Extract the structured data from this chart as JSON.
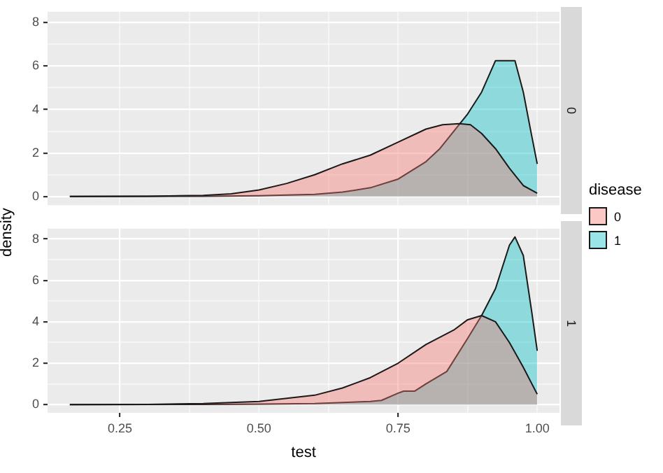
{
  "chart_data": [
    {
      "type": "area",
      "title": "0",
      "ylabel": "density",
      "legend_title": "disease",
      "legend": "right",
      "grid": true,
      "tick_labels": "y",
      "marker": "none",
      "xlim": [
        0.12,
        1.04
      ],
      "xticks": [
        {
          "value": 0.25,
          "label": null
        },
        {
          "value": 0.375,
          "label": null
        },
        {
          "value": 0.5,
          "label": null
        },
        {
          "value": 0.625,
          "label": null
        },
        {
          "value": 0.75,
          "label": null
        },
        {
          "value": 0.875,
          "label": null
        },
        {
          "value": 1.0,
          "label": null
        }
      ],
      "ylim": [
        -0.4,
        8.5
      ],
      "yticks": [
        0,
        {
          "value": 1,
          "label": null
        },
        2,
        {
          "value": 3,
          "label": null
        },
        4,
        {
          "value": 5,
          "label": null
        },
        6,
        {
          "value": 7,
          "label": null
        },
        8
      ],
      "series": [
        {
          "name": "0",
          "color": "#f8766d",
          "x": [
            0.16,
            0.3,
            0.4,
            0.45,
            0.5,
            0.55,
            0.6,
            0.65,
            0.7,
            0.75,
            0.8,
            0.83,
            0.86,
            0.88,
            0.9,
            0.925,
            0.95,
            0.975,
            1.0
          ],
          "values": [
            0,
            0.01,
            0.05,
            0.12,
            0.3,
            0.6,
            1.0,
            1.5,
            1.9,
            2.5,
            3.1,
            3.3,
            3.35,
            3.3,
            2.9,
            2.2,
            1.3,
            0.5,
            0.15
          ]
        },
        {
          "name": "1",
          "color": "#00bfc4",
          "x": [
            0.16,
            0.4,
            0.5,
            0.6,
            0.65,
            0.7,
            0.75,
            0.8,
            0.825,
            0.85,
            0.875,
            0.9,
            0.925,
            0.96,
            0.975,
            0.99,
            1.0
          ],
          "values": [
            0,
            0.01,
            0.03,
            0.1,
            0.2,
            0.4,
            0.8,
            1.6,
            2.2,
            3.0,
            3.8,
            4.8,
            6.25,
            6.25,
            4.8,
            2.8,
            1.5
          ]
        }
      ]
    },
    {
      "type": "area",
      "title": "1",
      "xlabel": "test",
      "grid": true,
      "marker": "none",
      "xlim": [
        0.12,
        1.04
      ],
      "xticks": [
        0.25,
        {
          "value": 0.375,
          "label": null
        },
        {
          "value": 0.5,
          "label": "0.50"
        },
        {
          "value": 0.625,
          "label": null
        },
        0.75,
        {
          "value": 0.875,
          "label": null
        },
        {
          "value": 1.0,
          "label": "1.00"
        }
      ],
      "ylim": [
        -0.4,
        8.5
      ],
      "yticks": [
        0,
        {
          "value": 1,
          "label": null
        },
        2,
        {
          "value": 3,
          "label": null
        },
        4,
        {
          "value": 5,
          "label": null
        },
        6,
        {
          "value": 7,
          "label": null
        },
        8
      ],
      "series": [
        {
          "color": "#f8766d",
          "x": [
            0.16,
            0.3,
            0.4,
            0.5,
            0.6,
            0.65,
            0.7,
            0.75,
            0.8,
            0.85,
            0.875,
            0.9,
            0.925,
            0.95,
            0.975,
            1.0
          ],
          "values": [
            0,
            0.01,
            0.05,
            0.15,
            0.45,
            0.8,
            1.3,
            2.0,
            2.9,
            3.6,
            4.1,
            4.3,
            4.0,
            3.0,
            1.8,
            0.5
          ]
        },
        {
          "color": "#00bfc4",
          "x": [
            0.16,
            0.4,
            0.5,
            0.6,
            0.7,
            0.72,
            0.75,
            0.76,
            0.78,
            0.8,
            0.8375,
            0.875,
            0.9,
            0.925,
            0.95,
            0.96,
            0.975,
            0.99,
            1.0
          ],
          "values": [
            0,
            0.01,
            0.02,
            0.05,
            0.15,
            0.2,
            0.55,
            0.65,
            0.65,
            1.0,
            1.6,
            3.2,
            4.3,
            5.6,
            7.7,
            8.1,
            7.2,
            4.5,
            2.6
          ]
        }
      ]
    }
  ]
}
